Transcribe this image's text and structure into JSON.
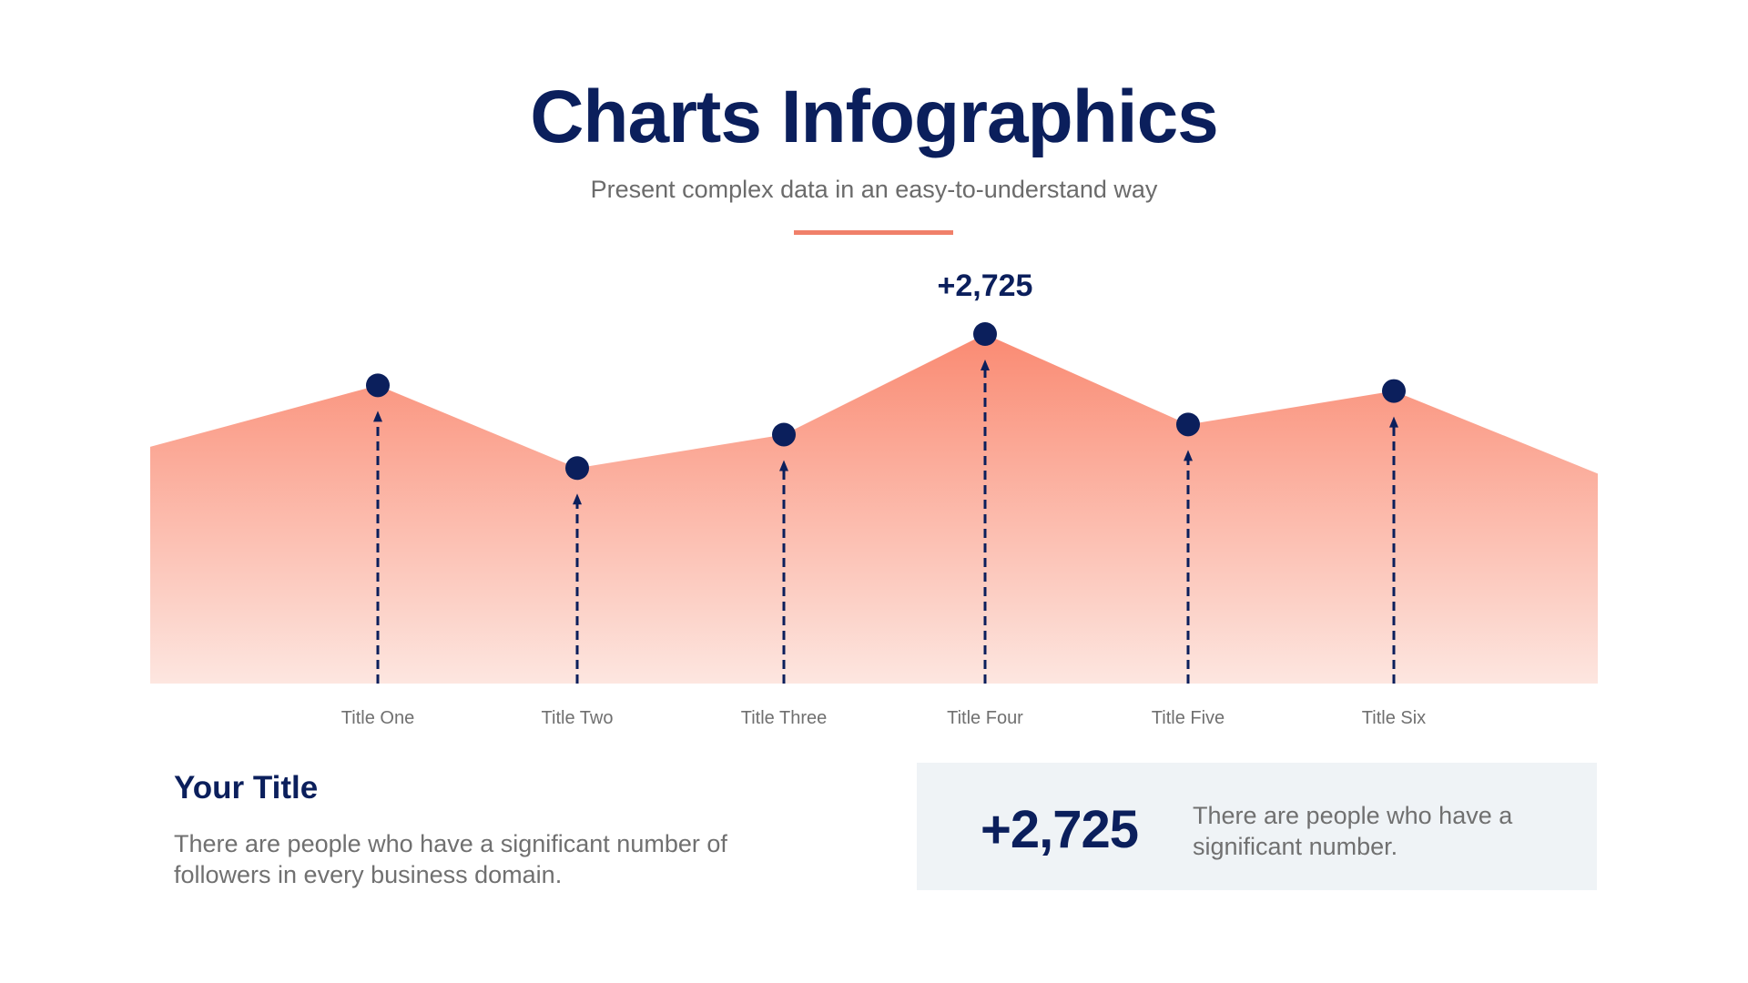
{
  "header": {
    "title": "Charts Infographics",
    "subtitle": "Present complex data in an easy-to-understand way"
  },
  "colors": {
    "navy": "#0b1f5c",
    "accent": "#f0806a",
    "area_top": "#fa8a72",
    "area_bottom": "#fde6e0",
    "box_bg": "#eff3f6"
  },
  "chart_data": {
    "type": "area",
    "categories": [
      "Title One",
      "Title Two",
      "Title Three",
      "Title Four",
      "Title Five",
      "Title Six"
    ],
    "values": [
      2325,
      1680,
      1941,
      2725,
      2020,
      2281
    ],
    "edge_values": {
      "start": 1846,
      "end": 1637
    },
    "annotations": [
      {
        "category": "Title Four",
        "text": "+2,725"
      }
    ],
    "markers": "dot with dashed arrow to baseline",
    "grid": false,
    "y_axis_visible": false
  },
  "summary": {
    "title": "Your Title",
    "body": "There are people who have a significant number of followers in every business domain."
  },
  "stat_box": {
    "value": "+2,725",
    "text": "There are people who have a significant number."
  }
}
